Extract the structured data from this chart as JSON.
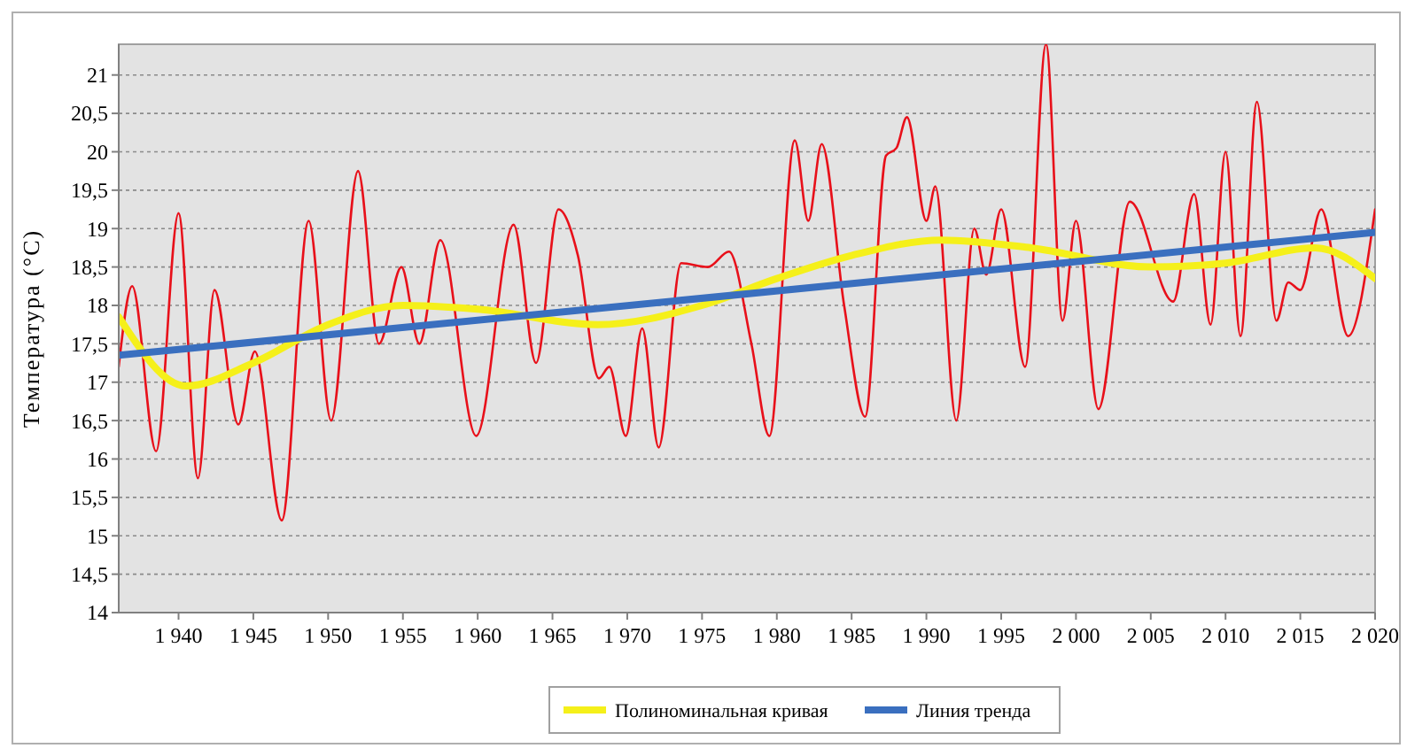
{
  "chart_data": {
    "type": "line",
    "ylabel": "Температура (°C)",
    "xlim": [
      1936,
      2020
    ],
    "ylim": [
      14,
      21.4
    ],
    "xticks": [
      {
        "value": 1940,
        "label": "1 940"
      },
      {
        "value": 1945,
        "label": "1 945"
      },
      {
        "value": 1950,
        "label": "1 950"
      },
      {
        "value": 1955,
        "label": "1 955"
      },
      {
        "value": 1960,
        "label": "1 960"
      },
      {
        "value": 1965,
        "label": "1 965"
      },
      {
        "value": 1970,
        "label": "1 970"
      },
      {
        "value": 1975,
        "label": "1 975"
      },
      {
        "value": 1980,
        "label": "1 980"
      },
      {
        "value": 1985,
        "label": "1 985"
      },
      {
        "value": 1990,
        "label": "1 990"
      },
      {
        "value": 1995,
        "label": "1 995"
      },
      {
        "value": 2000,
        "label": "2 000"
      },
      {
        "value": 2005,
        "label": "2 005"
      },
      {
        "value": 2010,
        "label": "2 010"
      },
      {
        "value": 2015,
        "label": "2 015"
      },
      {
        "value": 2020,
        "label": "2 020"
      }
    ],
    "yticks": [
      14,
      {
        "value": 14.5,
        "label": "14,5"
      },
      15,
      {
        "value": 15.5,
        "label": "15,5"
      },
      16,
      {
        "value": 16.5,
        "label": "16,5"
      },
      17,
      {
        "value": 17.5,
        "label": "17,5"
      },
      18,
      {
        "value": 18.5,
        "label": "18,5"
      },
      19,
      {
        "value": 19.5,
        "label": "19,5"
      },
      20,
      {
        "value": 20.5,
        "label": "20,5"
      },
      21
    ],
    "grid": "y",
    "legend": "bottom",
    "marker": "none",
    "series": [
      {
        "color": "#e8101a",
        "line_style": "solid",
        "x": [
          1936,
          1936.9,
          1938.5,
          1940,
          1941.3,
          1942.4,
          1944,
          1945.1,
          1946.9,
          1948.7,
          1950.2,
          1952,
          1953.4,
          1954.9,
          1956.1,
          1957.5,
          1959.9,
          1962.4,
          1963.9,
          1965.4,
          1966.7,
          1968.1,
          1968.8,
          1969.9,
          1971,
          1972.1,
          1973.6,
          1975.4,
          1976.8,
          1978.3,
          1979.5,
          1981.2,
          1982.1,
          1983,
          1984.5,
          1985.9,
          1987.3,
          1988,
          1988.7,
          1990,
          1990.6,
          1992,
          1993.2,
          1994,
          1995,
          1996.6,
          1998,
          1999.1,
          2000,
          2001.5,
          2003.6,
          2006.5,
          2007.9,
          2009,
          2010,
          2011,
          2012.1,
          2013.4,
          2014.2,
          2015,
          2016.4,
          2018.2,
          2020
        ],
        "values": [
          17.2,
          18.25,
          16.1,
          19.2,
          15.75,
          18.2,
          16.45,
          17.4,
          15.2,
          19.1,
          16.5,
          19.75,
          17.5,
          18.5,
          17.5,
          18.85,
          16.3,
          19.05,
          17.25,
          19.25,
          18.65,
          17.05,
          17.2,
          16.3,
          17.7,
          16.15,
          18.55,
          18.5,
          18.7,
          17.5,
          16.3,
          20.15,
          19.1,
          20.1,
          18,
          16.55,
          19.95,
          20.05,
          20.45,
          19.1,
          19.55,
          16.5,
          19,
          18.4,
          19.25,
          17.2,
          21.4,
          17.8,
          19.1,
          16.65,
          19.35,
          18.05,
          19.45,
          17.75,
          20,
          17.6,
          20.65,
          17.8,
          18.3,
          18.2,
          19.25,
          17.6,
          19.25
        ]
      },
      {
        "name": "Полиноминальная кривая",
        "color": "#f5f01a",
        "line_style": "solid",
        "x": [
          1936,
          1940.5,
          1945,
          1950,
          1955,
          1960,
          1968,
          1975,
          1980,
          1985,
          1991,
          1997,
          2005,
          2010,
          2016,
          2020
        ],
        "values": [
          17.85,
          16.95,
          17.25,
          17.75,
          18,
          17.95,
          17.75,
          18,
          18.35,
          18.65,
          18.85,
          18.75,
          18.5,
          18.55,
          18.75,
          18.35
        ]
      },
      {
        "name": "Линия тренда",
        "color": "#3a6fbf",
        "line_style": "solid",
        "x": [
          1936,
          2020
        ],
        "values": [
          17.35,
          18.95
        ]
      }
    ]
  }
}
